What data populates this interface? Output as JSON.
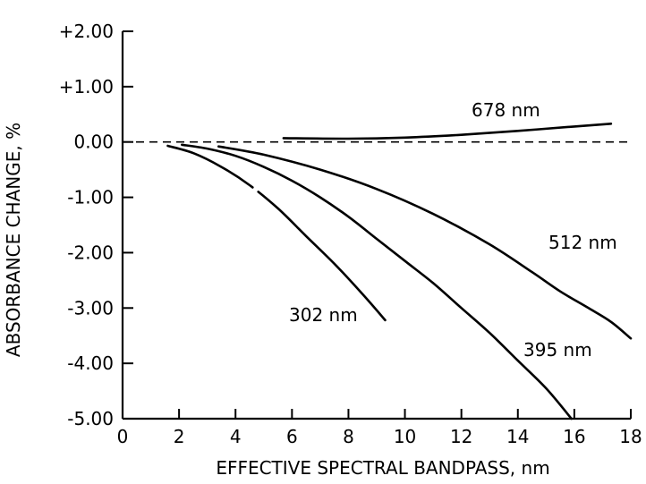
{
  "chart_data": {
    "type": "line",
    "title": "",
    "xlabel": "EFFECTIVE SPECTRAL BANDPASS, nm",
    "ylabel": "ABSORBANCE CHANGE, %",
    "xlim": [
      0,
      18
    ],
    "ylim": [
      -5.0,
      2.0
    ],
    "x_ticks": [
      0,
      2,
      4,
      6,
      8,
      10,
      12,
      14,
      16,
      18
    ],
    "x_tick_labels": [
      "0",
      "2",
      "4",
      "6",
      "8",
      "10",
      "12",
      "14",
      "16",
      "18"
    ],
    "y_ticks": [
      2,
      1,
      0,
      -1,
      -2,
      -3,
      -4,
      -5
    ],
    "y_tick_labels": [
      "+2.00",
      "+1.00",
      "0.00",
      "-1.00",
      "-2.00",
      "-3.00",
      "-4.00",
      "-5.00"
    ],
    "reference_line": {
      "y": 0,
      "style": "dashed"
    },
    "series": [
      {
        "name": "678 nm",
        "x": [
          5.7,
          8,
          10,
          12,
          14,
          16,
          17.3
        ],
        "y": [
          0.07,
          0.06,
          0.08,
          0.13,
          0.2,
          0.28,
          0.33
        ]
      },
      {
        "name": "512 nm",
        "x": [
          3.4,
          5,
          7,
          9,
          11,
          13,
          14.5,
          15.5,
          16.5,
          17.3,
          18.0
        ],
        "y": [
          -0.08,
          -0.23,
          -0.5,
          -0.85,
          -1.3,
          -1.85,
          -2.35,
          -2.7,
          -3.0,
          -3.25,
          -3.55
        ]
      },
      {
        "name": "395 nm",
        "x": [
          2.1,
          3,
          4,
          5,
          6,
          7,
          8,
          9,
          10,
          11,
          12,
          13,
          14,
          15,
          15.9
        ],
        "y": [
          -0.05,
          -0.12,
          -0.25,
          -0.45,
          -0.7,
          -1.0,
          -1.35,
          -1.75,
          -2.15,
          -2.55,
          -3.0,
          -3.45,
          -3.95,
          -4.45,
          -5.0
        ]
      },
      {
        "name": "302 nm",
        "x": [
          1.6,
          2.5,
          3.5,
          4.5,
          5.5,
          6.5,
          7.5,
          8.5,
          9.3
        ],
        "y": [
          -0.07,
          -0.2,
          -0.45,
          -0.78,
          -1.2,
          -1.7,
          -2.2,
          -2.75,
          -3.22
        ],
        "gap_x": [
          4.6,
          4.8
        ]
      }
    ]
  }
}
